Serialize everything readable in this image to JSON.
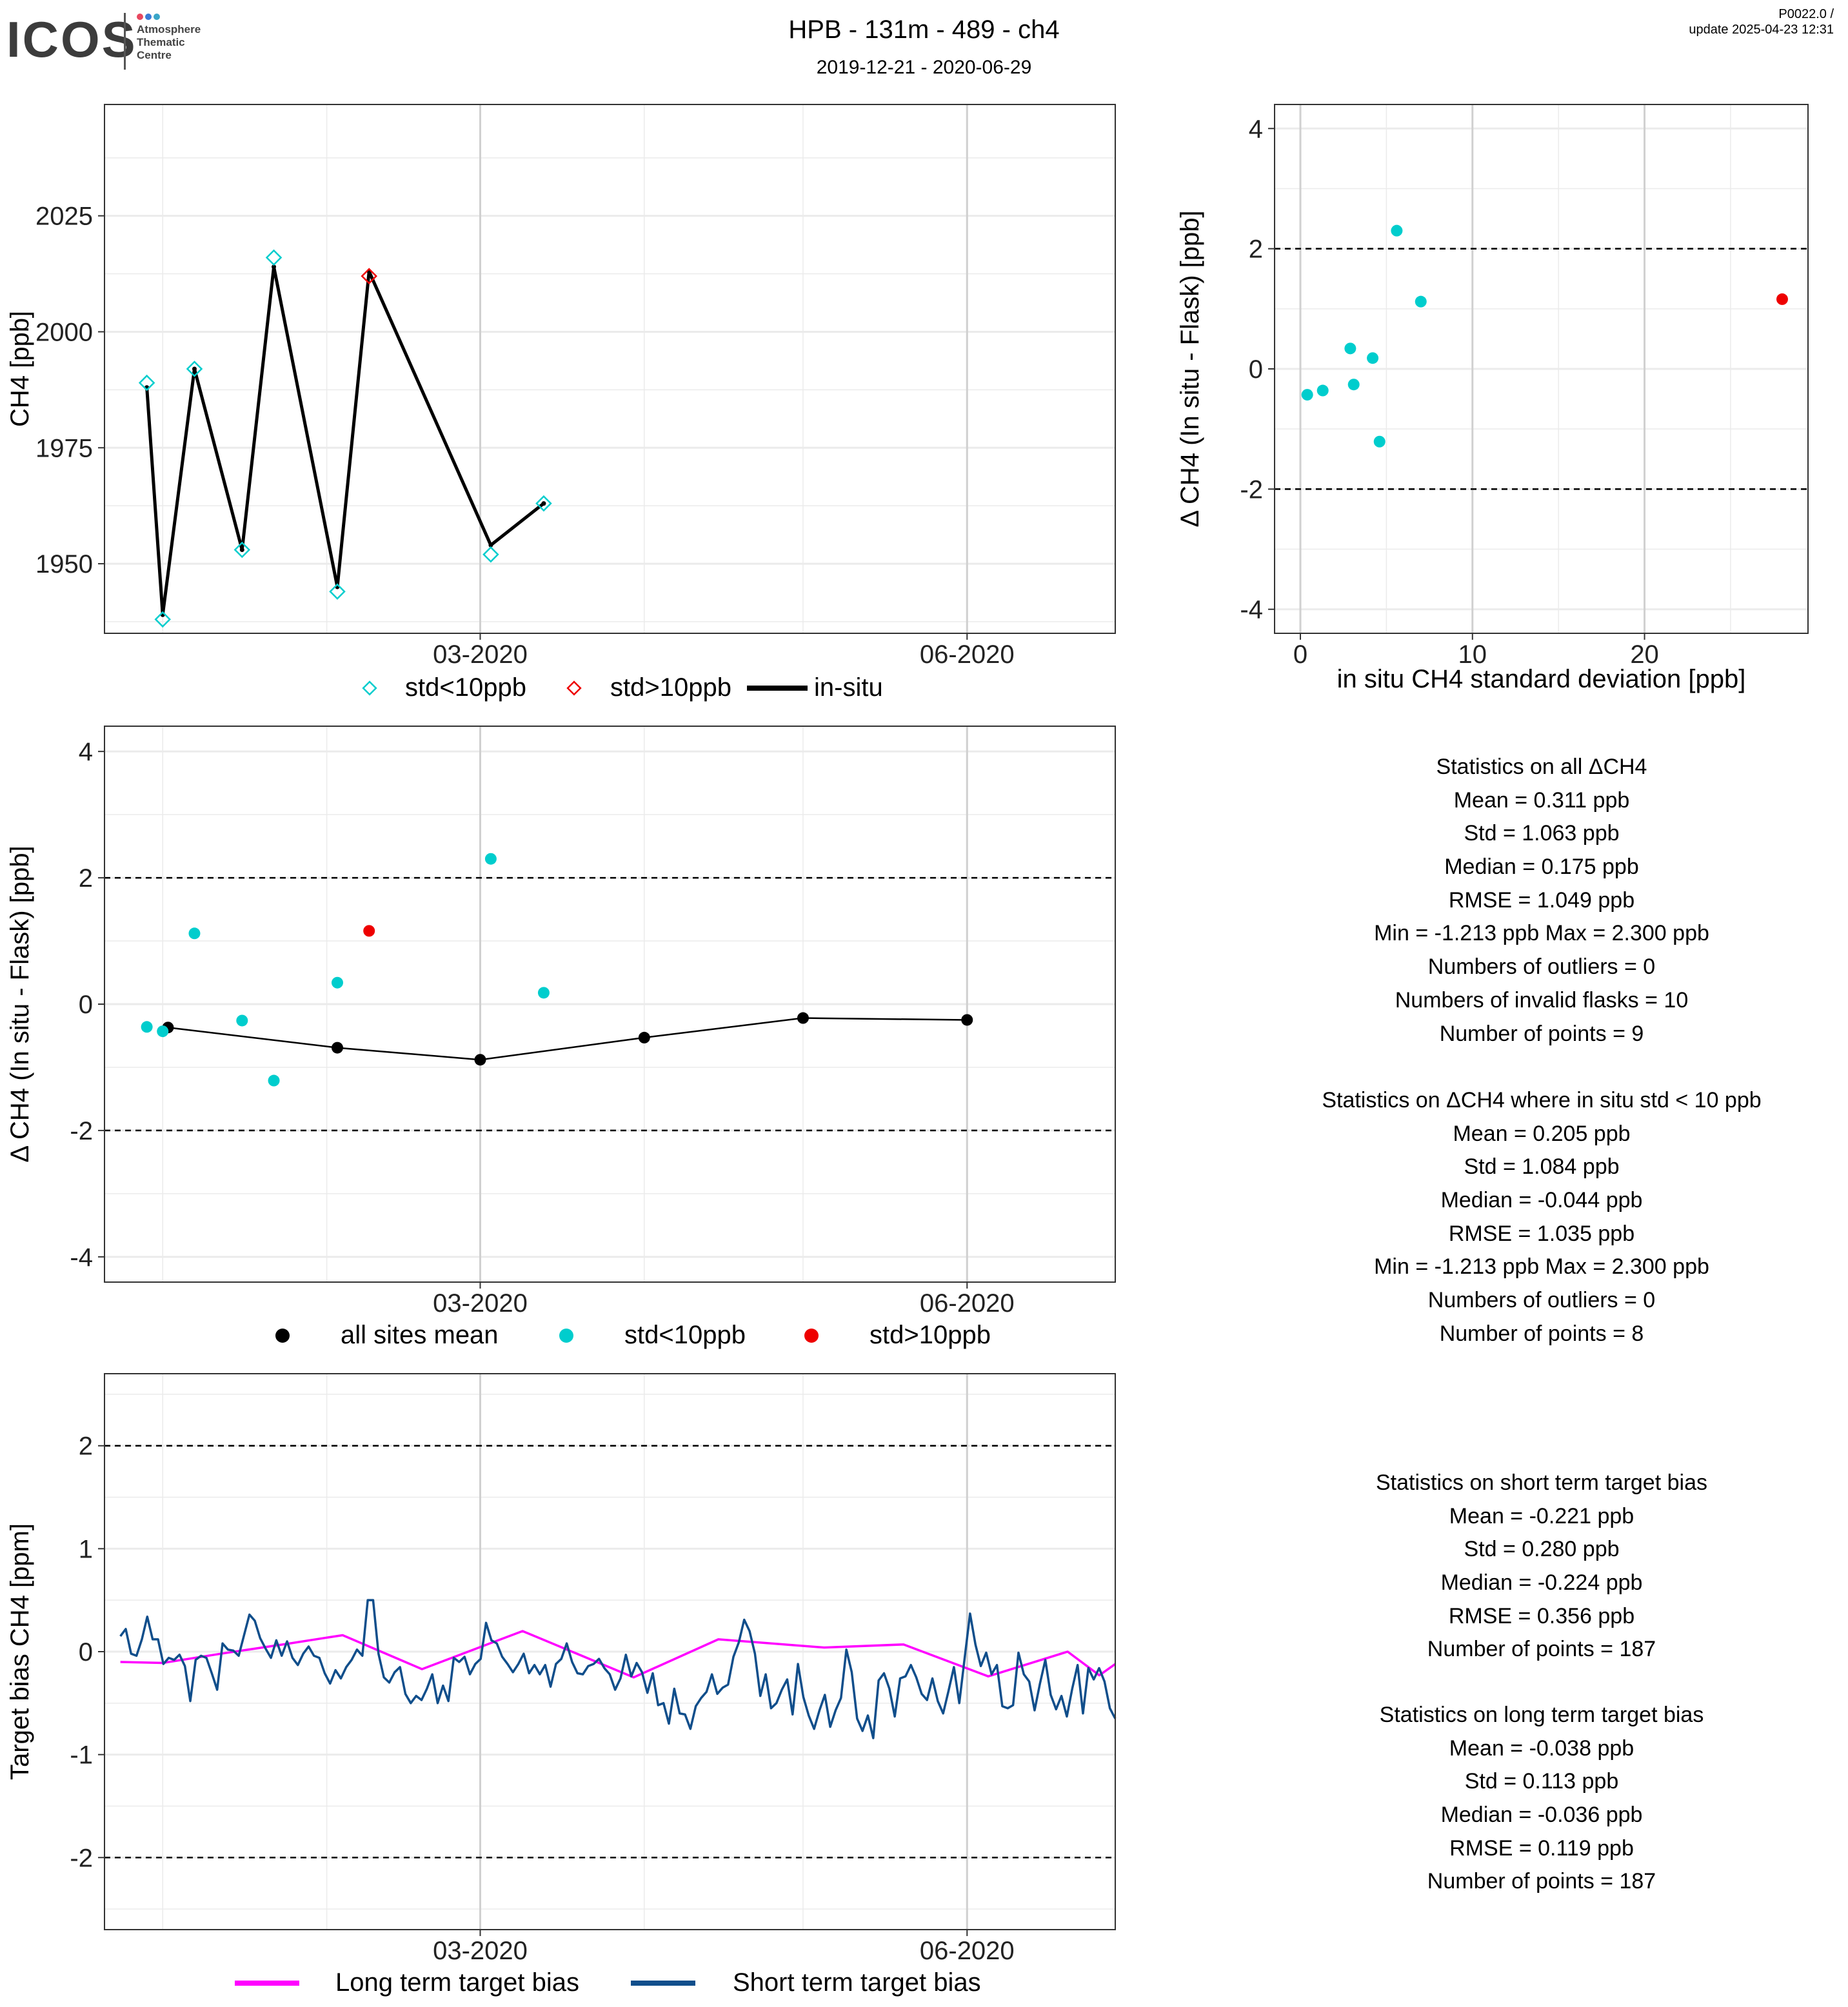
{
  "header": {
    "logo_text": "ICOS",
    "logo_subtitle": [
      "Atmosphere",
      "Thematic",
      "Centre"
    ],
    "logo_dot_colors": [
      "#e8475f",
      "#3a7bd5",
      "#3aa6c8"
    ],
    "title": "HPB - 131m - 489 - ch4",
    "date_range": "2019-12-21 - 2020-06-29",
    "version": "P0022.0 /",
    "update": "update  2025-04-23 12:31"
  },
  "colors": {
    "std_lt10": "#00CDCD",
    "std_gt10": "#EE0000",
    "insitu": "#000000",
    "long_term": "#FF00FF",
    "short_term": "#104E8B"
  },
  "legends": {
    "top": [
      "std<10ppb",
      "std>10ppb",
      "in-situ"
    ],
    "middle": [
      "all sites mean",
      "std<10ppb",
      "std>10ppb"
    ],
    "bottom": [
      "Long term target bias",
      "Short term target bias"
    ]
  },
  "stats_all": [
    "Statistics on all ΔCH4",
    "Mean =  0.311 ppb",
    "Std =  1.063 ppb",
    "Median =  0.175 ppb",
    "RMSE =  1.049 ppb",
    "Min =  -1.213 ppb Max =  2.300 ppb",
    "Numbers of outliers =  0",
    "Numbers of invalid flasks =  10",
    "Number of points =  9"
  ],
  "stats_std": [
    "Statistics on ΔCH4 where in situ std < 10 ppb",
    "Mean =  0.205 ppb",
    "Std =  1.084 ppb",
    "Median =  -0.044 ppb",
    "RMSE =  1.035 ppb",
    "Min =  -1.213 ppb Max =  2.300 ppb",
    "Numbers of outliers =  0",
    "Number of points =  8"
  ],
  "stats_short": [
    "Statistics on short term target bias",
    "Mean =  -0.221 ppb",
    "Std =  0.280 ppb",
    "Median =  -0.224 ppb",
    "RMSE =  0.356 ppb",
    "Number of points =  187"
  ],
  "stats_long": [
    "Statistics on long term target bias",
    "Mean =  -0.038 ppb",
    "Std =  0.113 ppb",
    "Median =  -0.036 ppb",
    "RMSE =  0.119 ppb",
    "Number of points =  187"
  ],
  "chart_data": [
    {
      "id": "timeseries",
      "type": "line",
      "ylabel": "CH4 [ppb]",
      "xlim": [
        "2019-12-21",
        "2020-06-29"
      ],
      "ylim": [
        1935,
        2049
      ],
      "x_ticks": [
        "03-2020",
        "06-2020"
      ],
      "y_ticks": [
        1950,
        1975,
        2000,
        2025
      ],
      "insitu_series": {
        "name": "in-situ",
        "x": [
          "2019-12-29",
          "2020-01-01",
          "2020-01-07",
          "2020-01-16",
          "2020-01-22",
          "2020-02-03",
          "2020-02-09",
          "2020-03-03",
          "2020-03-13"
        ],
        "y": [
          1988,
          1939,
          1992,
          1953,
          2014,
          1945,
          2013,
          1954,
          1963
        ]
      },
      "flask_std_lt10": {
        "name": "std<10ppb",
        "x": [
          "2019-12-29",
          "2020-01-01",
          "2020-01-07",
          "2020-01-16",
          "2020-01-22",
          "2020-02-03",
          "2020-03-03",
          "2020-03-13"
        ],
        "y": [
          1989,
          1938,
          1992,
          1953,
          2016,
          1944,
          1952,
          1963
        ]
      },
      "flask_std_gt10": {
        "name": "std>10ppb",
        "x": [
          "2020-02-09"
        ],
        "y": [
          2012
        ]
      }
    },
    {
      "id": "delta_vs_std",
      "type": "scatter",
      "xlabel": "in situ CH4 standard deviation [ppb]",
      "ylabel": "Δ CH4 (In situ - Flask) [ppb]",
      "xlim": [
        -1.5,
        29.5
      ],
      "ylim": [
        -4.4,
        4.4
      ],
      "x_ticks": [
        0,
        10,
        20
      ],
      "y_ticks": [
        -4,
        -2,
        0,
        2,
        4
      ],
      "hlines": [
        -2,
        2
      ],
      "std_lt10": [
        [
          0.4,
          -0.43
        ],
        [
          1.3,
          -0.36
        ],
        [
          2.9,
          0.34
        ],
        [
          3.1,
          -0.26
        ],
        [
          4.2,
          0.18
        ],
        [
          4.6,
          -1.21
        ],
        [
          5.6,
          2.3
        ],
        [
          7.0,
          1.12
        ]
      ],
      "std_gt10": [
        [
          28.0,
          1.16
        ]
      ]
    },
    {
      "id": "delta_timeseries",
      "type": "scatter",
      "ylabel": "Δ CH4 (In situ - Flask) [ppb]",
      "xlim": [
        "2019-12-21",
        "2020-06-29"
      ],
      "ylim": [
        -4.4,
        4.4
      ],
      "x_ticks": [
        "03-2020",
        "06-2020"
      ],
      "y_ticks": [
        -4,
        -2,
        0,
        2,
        4
      ],
      "hlines": [
        -2,
        2
      ],
      "std_lt10": {
        "x": [
          "2019-12-29",
          "2020-01-01",
          "2020-01-07",
          "2020-01-16",
          "2020-01-22",
          "2020-02-03",
          "2020-03-03",
          "2020-03-13"
        ],
        "y": [
          -0.36,
          -0.43,
          1.12,
          -0.26,
          -1.21,
          0.34,
          2.3,
          0.18
        ]
      },
      "std_gt10": {
        "x": [
          "2020-02-09"
        ],
        "y": [
          1.16
        ]
      },
      "all_sites_mean": {
        "x": [
          "2020-01-02",
          "2020-02-03",
          "2020-03-01",
          "2020-04-01",
          "2020-05-01",
          "2020-06-01"
        ],
        "y": [
          -0.37,
          -0.69,
          -0.88,
          -0.53,
          -0.22,
          -0.25
        ]
      }
    },
    {
      "id": "target_bias",
      "type": "line",
      "ylabel": "Target bias CH4 [ppm]",
      "xlim": [
        "2019-12-21",
        "2020-06-29"
      ],
      "ylim": [
        -2.7,
        2.7
      ],
      "x_ticks": [
        "03-2020",
        "06-2020"
      ],
      "y_ticks": [
        -2,
        -1,
        0,
        1,
        2
      ],
      "hlines": [
        -2,
        2
      ],
      "long_term": {
        "name": "Long term target bias",
        "x": [
          "2019-12-24",
          "2020-01-01",
          "2020-01-12",
          "2020-01-25",
          "2020-02-04",
          "2020-02-19",
          "2020-03-09",
          "2020-03-30",
          "2020-04-15",
          "2020-05-05",
          "2020-05-20",
          "2020-06-05",
          "2020-06-20",
          "2020-06-29"
        ],
        "y": [
          -0.1,
          -0.11,
          -0.02,
          0.08,
          0.16,
          -0.17,
          0.2,
          -0.25,
          0.12,
          0.04,
          0.07,
          -0.24,
          0.0,
          -0.12
        ],
        "extra": [
          [
            "2020-06-26",
            -0.23
          ]
        ]
      },
      "short_term": {
        "name": "Short term target bias",
        "x_start": "2019-12-24",
        "x_end": "2020-06-29",
        "y": [
          0.15,
          0.22,
          -0.02,
          -0.04,
          0.12,
          0.34,
          0.12,
          0.12,
          -0.12,
          -0.06,
          -0.08,
          -0.03,
          -0.14,
          -0.48,
          -0.08,
          -0.04,
          -0.06,
          -0.21,
          -0.37,
          0.08,
          0.02,
          0.01,
          -0.04,
          0.16,
          0.36,
          0.3,
          0.13,
          0.03,
          -0.06,
          0.11,
          -0.04,
          0.1,
          -0.06,
          -0.13,
          -0.02,
          0.05,
          -0.04,
          -0.06,
          -0.21,
          -0.31,
          -0.18,
          -0.26,
          -0.15,
          -0.08,
          0.02,
          -0.04,
          0.5,
          0.5,
          -0.02,
          -0.25,
          -0.3,
          -0.2,
          -0.15,
          -0.41,
          -0.5,
          -0.43,
          -0.47,
          -0.36,
          -0.22,
          -0.5,
          -0.33,
          -0.48,
          -0.06,
          -0.1,
          -0.05,
          -0.22,
          -0.12,
          -0.07,
          0.28,
          0.11,
          0.08,
          -0.05,
          -0.12,
          -0.2,
          -0.12,
          -0.02,
          -0.21,
          -0.13,
          -0.22,
          -0.13,
          -0.34,
          -0.12,
          -0.07,
          0.08,
          -0.1,
          -0.21,
          -0.22,
          -0.14,
          -0.12,
          -0.07,
          -0.16,
          -0.22,
          -0.37,
          -0.26,
          -0.03,
          -0.24,
          -0.11,
          -0.2,
          -0.4,
          -0.21,
          -0.52,
          -0.5,
          -0.7,
          -0.36,
          -0.6,
          -0.61,
          -0.75,
          -0.53,
          -0.45,
          -0.39,
          -0.22,
          -0.41,
          -0.35,
          -0.32,
          -0.05,
          0.09,
          0.31,
          0.2,
          -0.02,
          -0.43,
          -0.22,
          -0.55,
          -0.5,
          -0.37,
          -0.27,
          -0.61,
          -0.12,
          -0.44,
          -0.62,
          -0.75,
          -0.57,
          -0.42,
          -0.73,
          -0.57,
          -0.45,
          0.02,
          -0.2,
          -0.65,
          -0.77,
          -0.62,
          -0.84,
          -0.28,
          -0.21,
          -0.36,
          -0.63,
          -0.26,
          -0.24,
          -0.13,
          -0.25,
          -0.41,
          -0.47,
          -0.26,
          -0.48,
          -0.6,
          -0.38,
          -0.15,
          -0.5,
          -0.06,
          0.37,
          0.07,
          -0.14,
          -0.01,
          -0.22,
          -0.13,
          -0.53,
          -0.55,
          -0.52,
          -0.01,
          -0.22,
          -0.29,
          -0.57,
          -0.31,
          -0.08,
          -0.42,
          -0.56,
          -0.43,
          -0.63,
          -0.36,
          -0.13,
          -0.6,
          -0.16,
          -0.27,
          -0.16,
          -0.29,
          -0.55,
          -0.65
        ]
      }
    }
  ]
}
